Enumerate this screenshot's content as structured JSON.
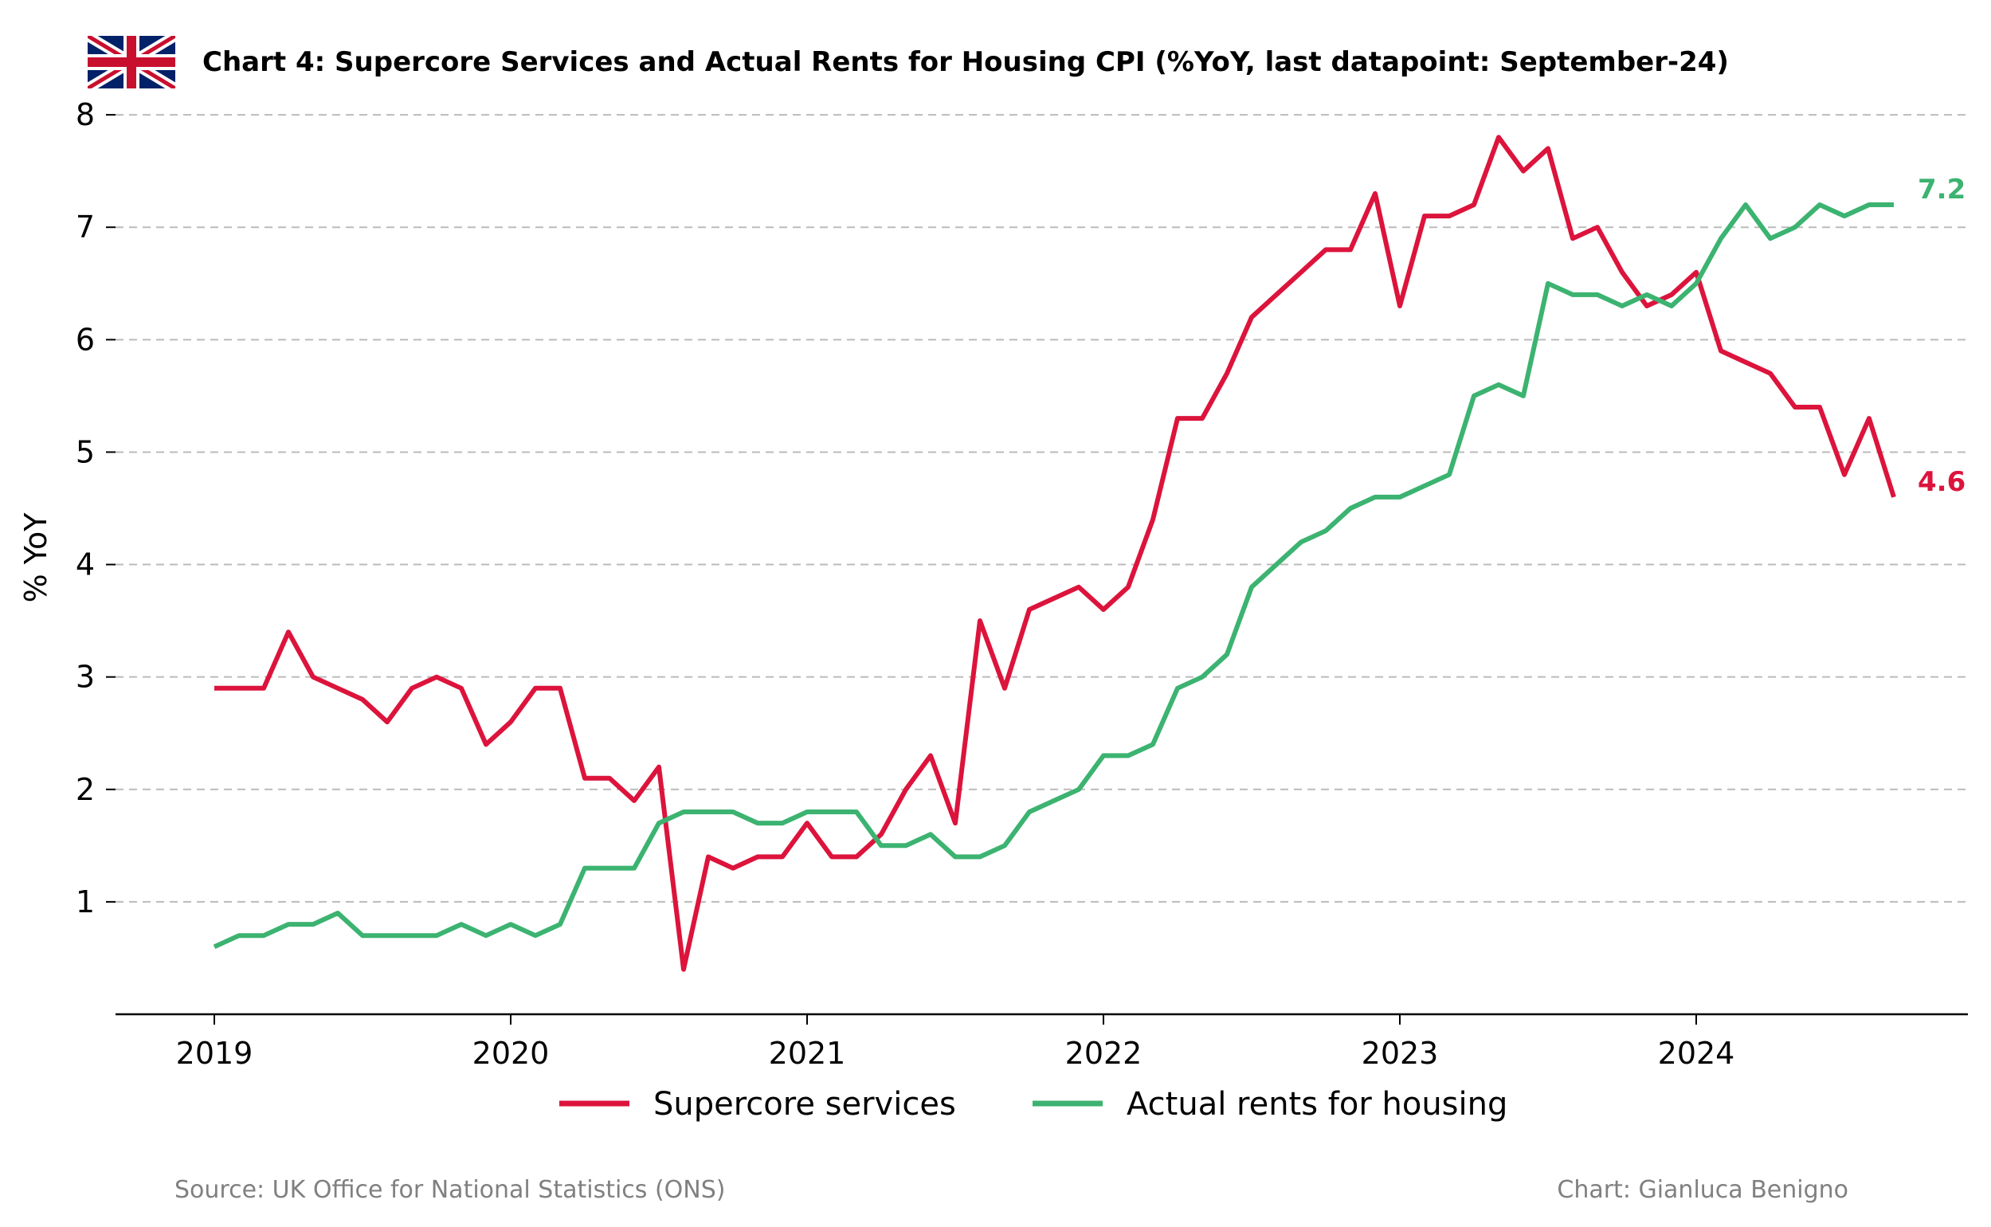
{
  "colors": {
    "supercore": "#DC143C",
    "rents": "#3CB371",
    "grid": "#bbbbbb",
    "footer": "#808080"
  },
  "icons": [
    "uk-flag-icon"
  ],
  "chart_data": {
    "type": "line",
    "title": "Chart 4: Supercore Services and Actual Rents for Housing CPI (%YoY, last datapoint: September-24)",
    "xlabel": "",
    "ylabel": "% YoY",
    "xlim": [
      "2018-09",
      "2024-12"
    ],
    "ylim": [
      0,
      8.1
    ],
    "yticks": [
      1,
      2,
      3,
      4,
      5,
      6,
      7,
      8
    ],
    "xtick_labels": [
      "2019",
      "2020",
      "2021",
      "2022",
      "2023",
      "2024"
    ],
    "grid": "horizontal dashed",
    "legend_position": "bottom-center",
    "x": [
      "2019-01",
      "2019-02",
      "2019-03",
      "2019-04",
      "2019-05",
      "2019-06",
      "2019-07",
      "2019-08",
      "2019-09",
      "2019-10",
      "2019-11",
      "2019-12",
      "2020-01",
      "2020-02",
      "2020-03",
      "2020-04",
      "2020-05",
      "2020-06",
      "2020-07",
      "2020-08",
      "2020-09",
      "2020-10",
      "2020-11",
      "2020-12",
      "2021-01",
      "2021-02",
      "2021-03",
      "2021-04",
      "2021-05",
      "2021-06",
      "2021-07",
      "2021-08",
      "2021-09",
      "2021-10",
      "2021-11",
      "2021-12",
      "2022-01",
      "2022-02",
      "2022-03",
      "2022-04",
      "2022-05",
      "2022-06",
      "2022-07",
      "2022-08",
      "2022-09",
      "2022-10",
      "2022-11",
      "2022-12",
      "2023-01",
      "2023-02",
      "2023-03",
      "2023-04",
      "2023-05",
      "2023-06",
      "2023-07",
      "2023-08",
      "2023-09",
      "2023-10",
      "2023-11",
      "2023-12",
      "2024-01",
      "2024-02",
      "2024-03",
      "2024-04",
      "2024-05",
      "2024-06",
      "2024-07",
      "2024-08",
      "2024-09"
    ],
    "series": [
      {
        "name": "Supercore services",
        "color": "#DC143C",
        "end_label": "4.6",
        "values": [
          2.9,
          2.9,
          2.9,
          3.4,
          3.0,
          2.9,
          2.8,
          2.6,
          2.9,
          3.0,
          2.9,
          2.4,
          2.6,
          2.9,
          2.9,
          2.1,
          2.1,
          1.9,
          2.2,
          0.4,
          1.4,
          1.3,
          1.4,
          1.4,
          1.7,
          1.4,
          1.4,
          1.6,
          2.0,
          2.3,
          1.7,
          3.5,
          2.9,
          3.6,
          3.7,
          3.8,
          3.6,
          3.8,
          4.4,
          5.3,
          5.3,
          5.7,
          6.2,
          6.4,
          6.6,
          6.8,
          6.8,
          7.3,
          6.3,
          7.1,
          7.1,
          7.2,
          7.8,
          7.5,
          7.7,
          6.9,
          7.0,
          6.6,
          6.3,
          6.4,
          6.6,
          5.9,
          5.8,
          5.7,
          5.4,
          5.4,
          4.8,
          5.3,
          4.6
        ]
      },
      {
        "name": "Actual rents for housing",
        "color": "#3CB371",
        "end_label": "7.2",
        "values": [
          0.6,
          0.7,
          0.7,
          0.8,
          0.8,
          0.9,
          0.7,
          0.7,
          0.7,
          0.7,
          0.8,
          0.7,
          0.8,
          0.7,
          0.8,
          1.3,
          1.3,
          1.3,
          1.7,
          1.8,
          1.8,
          1.8,
          1.7,
          1.7,
          1.8,
          1.8,
          1.8,
          1.5,
          1.5,
          1.6,
          1.4,
          1.4,
          1.5,
          1.8,
          1.9,
          2.0,
          2.3,
          2.3,
          2.4,
          2.9,
          3.0,
          3.2,
          3.8,
          4.0,
          4.2,
          4.3,
          4.5,
          4.6,
          4.6,
          4.7,
          4.8,
          5.5,
          5.6,
          5.5,
          6.5,
          6.4,
          6.4,
          6.3,
          6.4,
          6.3,
          6.5,
          6.9,
          7.2,
          6.9,
          7.0,
          7.2,
          7.1,
          7.2,
          7.2
        ]
      }
    ]
  },
  "footer": {
    "source": "Source: UK Office for National Statistics (ONS)",
    "credit": "Chart: Gianluca Benigno"
  }
}
